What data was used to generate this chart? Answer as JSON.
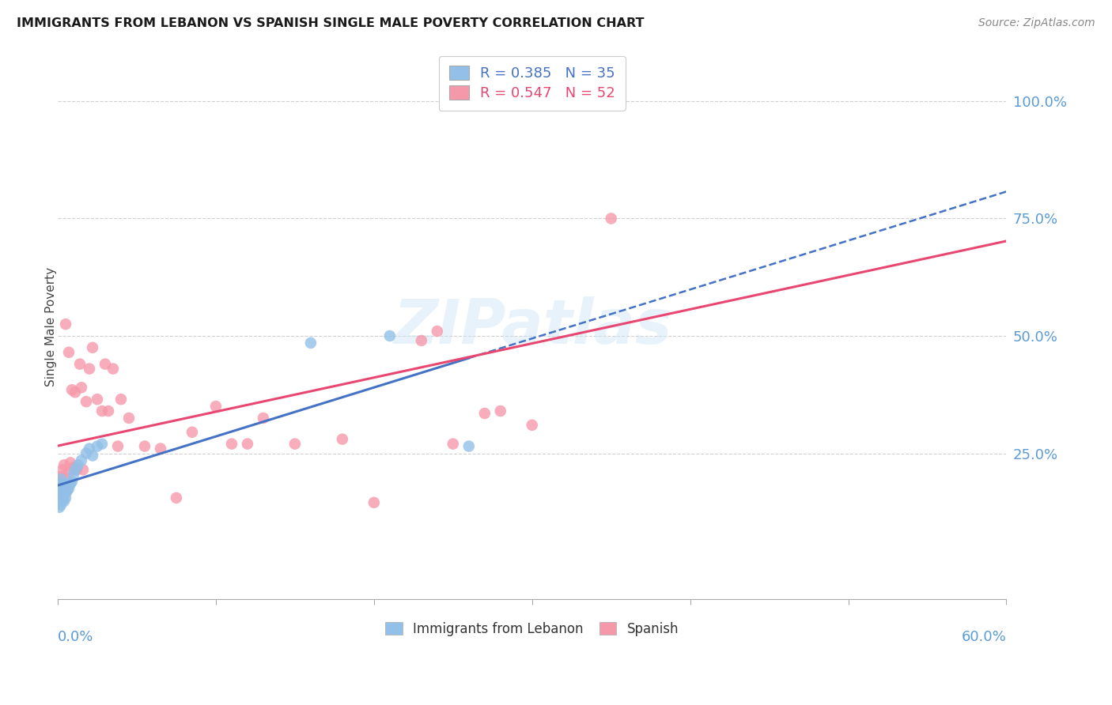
{
  "title": "IMMIGRANTS FROM LEBANON VS SPANISH SINGLE MALE POVERTY CORRELATION CHART",
  "source": "Source: ZipAtlas.com",
  "ylabel": "Single Male Poverty",
  "ytick_labels": [
    "100.0%",
    "75.0%",
    "50.0%",
    "25.0%"
  ],
  "ytick_values": [
    1.0,
    0.75,
    0.5,
    0.25
  ],
  "xmin": 0.0,
  "xmax": 0.6,
  "ymin": -0.06,
  "ymax": 1.1,
  "legend_r1": "R = 0.385   N = 35",
  "legend_r2": "R = 0.547   N = 52",
  "blue_color": "#92c0e8",
  "pink_color": "#f599aa",
  "blue_line_color": "#4472c4",
  "pink_line_color": "#e84771",
  "watermark": "ZIPatlas",
  "lebanon_x": [
    0.001,
    0.001,
    0.001,
    0.001,
    0.001,
    0.002,
    0.002,
    0.002,
    0.002,
    0.002,
    0.003,
    0.003,
    0.003,
    0.004,
    0.004,
    0.004,
    0.005,
    0.005,
    0.005,
    0.006,
    0.007,
    0.008,
    0.009,
    0.01,
    0.011,
    0.013,
    0.015,
    0.018,
    0.02,
    0.022,
    0.025,
    0.028,
    0.16,
    0.21,
    0.26
  ],
  "lebanon_y": [
    0.135,
    0.155,
    0.165,
    0.175,
    0.185,
    0.14,
    0.15,
    0.16,
    0.17,
    0.195,
    0.155,
    0.165,
    0.18,
    0.148,
    0.162,
    0.178,
    0.155,
    0.168,
    0.185,
    0.17,
    0.175,
    0.185,
    0.19,
    0.205,
    0.215,
    0.225,
    0.235,
    0.25,
    0.26,
    0.245,
    0.265,
    0.27,
    0.485,
    0.5,
    0.265
  ],
  "spanish_x": [
    0.001,
    0.001,
    0.002,
    0.002,
    0.003,
    0.003,
    0.004,
    0.004,
    0.005,
    0.005,
    0.005,
    0.006,
    0.007,
    0.007,
    0.008,
    0.009,
    0.01,
    0.011,
    0.012,
    0.014,
    0.015,
    0.016,
    0.018,
    0.02,
    0.022,
    0.025,
    0.028,
    0.03,
    0.032,
    0.035,
    0.038,
    0.04,
    0.045,
    0.055,
    0.065,
    0.075,
    0.085,
    0.1,
    0.11,
    0.12,
    0.13,
    0.15,
    0.18,
    0.2,
    0.23,
    0.24,
    0.25,
    0.27,
    0.28,
    0.3,
    0.32,
    0.35
  ],
  "spanish_y": [
    0.165,
    0.195,
    0.165,
    0.2,
    0.15,
    0.215,
    0.175,
    0.225,
    0.165,
    0.195,
    0.525,
    0.175,
    0.21,
    0.465,
    0.23,
    0.385,
    0.22,
    0.38,
    0.215,
    0.44,
    0.39,
    0.215,
    0.36,
    0.43,
    0.475,
    0.365,
    0.34,
    0.44,
    0.34,
    0.43,
    0.265,
    0.365,
    0.325,
    0.265,
    0.26,
    0.155,
    0.295,
    0.35,
    0.27,
    0.27,
    0.325,
    0.27,
    0.28,
    0.145,
    0.49,
    0.51,
    0.27,
    0.335,
    0.34,
    0.31,
    1.0,
    0.75
  ]
}
